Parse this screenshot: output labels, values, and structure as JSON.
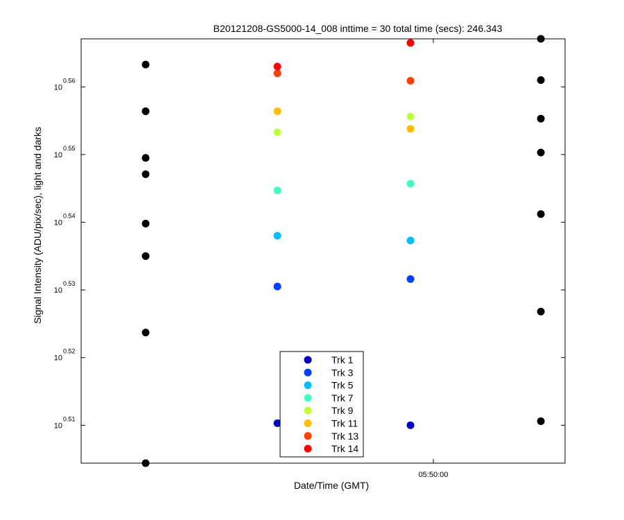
{
  "chart_data": {
    "type": "scatter",
    "title": "B20121208-GS5000-14_008 inttime = 30 total time (secs): 246.343",
    "xlabel": "Date/Time (GMT)",
    "ylabel": "Signal Intensity (ADU/pix/sec), light and darks",
    "x_ticks": [
      {
        "label": "05:50:00",
        "value": 2.62
      }
    ],
    "xlim": [
      0,
      3.6
    ],
    "ylim": [
      0.5044,
      0.5671
    ],
    "y_scale": "log10 exponent",
    "y_ticks": [
      {
        "base": "10",
        "exp": "0.51",
        "value": 0.51
      },
      {
        "base": "10",
        "exp": "0.52",
        "value": 0.52
      },
      {
        "base": "10",
        "exp": "0.53",
        "value": 0.53
      },
      {
        "base": "10",
        "exp": "0.54",
        "value": 0.54
      },
      {
        "base": "10",
        "exp": "0.55",
        "value": 0.55
      },
      {
        "base": "10",
        "exp": "0.56",
        "value": 0.56
      }
    ],
    "grid": false,
    "legend_position": "bottom-center",
    "series": [
      {
        "name": "Trk 1",
        "color": "#0000bf",
        "points": [
          [
            1.46,
            0.5103
          ],
          [
            2.45,
            0.51
          ]
        ]
      },
      {
        "name": "Trk 3",
        "color": "#0040ff",
        "points": [
          [
            1.46,
            0.5305
          ],
          [
            2.45,
            0.5316
          ]
        ]
      },
      {
        "name": "Trk 5",
        "color": "#00bfff",
        "points": [
          [
            1.46,
            0.538
          ],
          [
            2.45,
            0.5373
          ]
        ]
      },
      {
        "name": "Trk 7",
        "color": "#40ffbf",
        "points": [
          [
            1.46,
            0.5447
          ],
          [
            2.45,
            0.5457
          ]
        ]
      },
      {
        "name": "Trk 9",
        "color": "#bfff40",
        "points": [
          [
            1.46,
            0.5533
          ],
          [
            2.45,
            0.5556
          ]
        ]
      },
      {
        "name": "Trk 11",
        "color": "#ffbf00",
        "points": [
          [
            1.46,
            0.5564
          ],
          [
            2.45,
            0.5538
          ]
        ]
      },
      {
        "name": "Trk 13",
        "color": "#ff4000",
        "points": [
          [
            1.46,
            0.562
          ],
          [
            2.45,
            0.5609
          ]
        ]
      },
      {
        "name": "Trk 14",
        "color": "#ff0000",
        "points": [
          [
            1.46,
            0.563
          ],
          [
            2.45,
            0.5665
          ]
        ]
      },
      {
        "color": "#000000",
        "points": [
          [
            0.48,
            0.5633
          ],
          [
            0.48,
            0.5564
          ],
          [
            0.48,
            0.5495
          ],
          [
            0.48,
            0.5471
          ],
          [
            0.48,
            0.5398
          ],
          [
            0.48,
            0.535
          ],
          [
            0.48,
            0.5237
          ],
          [
            0.48,
            0.5044
          ],
          [
            3.42,
            0.5671
          ],
          [
            3.42,
            0.561
          ],
          [
            3.42,
            0.5553
          ],
          [
            3.42,
            0.5503
          ],
          [
            3.42,
            0.5412
          ],
          [
            3.42,
            0.5268
          ],
          [
            3.42,
            0.5106
          ]
        ]
      }
    ]
  }
}
